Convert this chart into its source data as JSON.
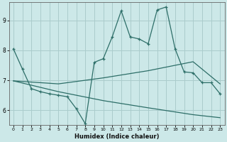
{
  "title": "",
  "xlabel": "Humidex (Indice chaleur)",
  "bg_color": "#cce8e8",
  "line_color": "#2d6e68",
  "grid_color": "#aacccc",
  "xlim": [
    -0.5,
    23.5
  ],
  "ylim": [
    5.5,
    9.6
  ],
  "yticks": [
    6,
    7,
    8,
    9
  ],
  "xticks": [
    0,
    1,
    2,
    3,
    4,
    5,
    6,
    7,
    8,
    9,
    10,
    11,
    12,
    13,
    14,
    15,
    16,
    17,
    18,
    19,
    20,
    21,
    22,
    23
  ],
  "line1_x": [
    0,
    1,
    2,
    3,
    4,
    5,
    6,
    7,
    8,
    9,
    10,
    11,
    12,
    13,
    14,
    15,
    16,
    17,
    18,
    19,
    20,
    21,
    22,
    23
  ],
  "line1_y": [
    8.05,
    7.38,
    6.72,
    6.62,
    6.55,
    6.5,
    6.45,
    6.05,
    5.55,
    7.6,
    7.72,
    8.45,
    9.32,
    8.45,
    8.38,
    8.22,
    9.35,
    9.45,
    8.05,
    7.28,
    7.25,
    6.92,
    6.92,
    6.55
  ],
  "line2_x": [
    0,
    5,
    10,
    15,
    20,
    23
  ],
  "line2_y": [
    6.98,
    6.88,
    7.08,
    7.32,
    7.62,
    6.88
  ],
  "line3_x": [
    0,
    5,
    10,
    15,
    20,
    23
  ],
  "line3_y": [
    6.98,
    6.62,
    6.32,
    6.08,
    5.85,
    5.75
  ]
}
